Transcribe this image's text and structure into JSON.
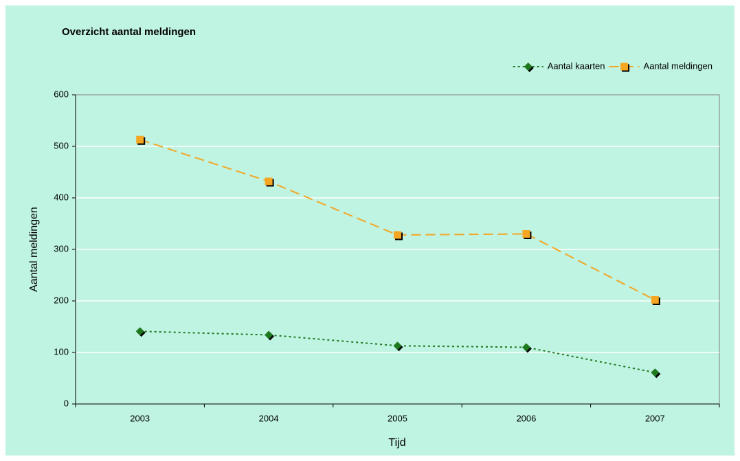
{
  "chart_data": {
    "type": "line",
    "title": "Overzicht aantal meldingen",
    "x_label": "Tijd",
    "y_label": "Aantal meldingen",
    "categories": [
      "2003",
      "2004",
      "2005",
      "2006",
      "2007"
    ],
    "series": [
      {
        "name": "Aantal kaarten",
        "color": "#1f7a1f",
        "marker": "diamond",
        "dash": "dotted",
        "values": [
          141,
          134,
          113,
          110,
          61
        ]
      },
      {
        "name": "Aantal meldingen",
        "color": "#f5a623",
        "marker": "square",
        "dash": "dashed",
        "values": [
          513,
          432,
          328,
          330,
          202
        ]
      }
    ],
    "ylim": [
      0,
      600
    ],
    "yticks": [
      0,
      100,
      200,
      300,
      400,
      500,
      600
    ],
    "grid": true,
    "legend": "top-right"
  }
}
